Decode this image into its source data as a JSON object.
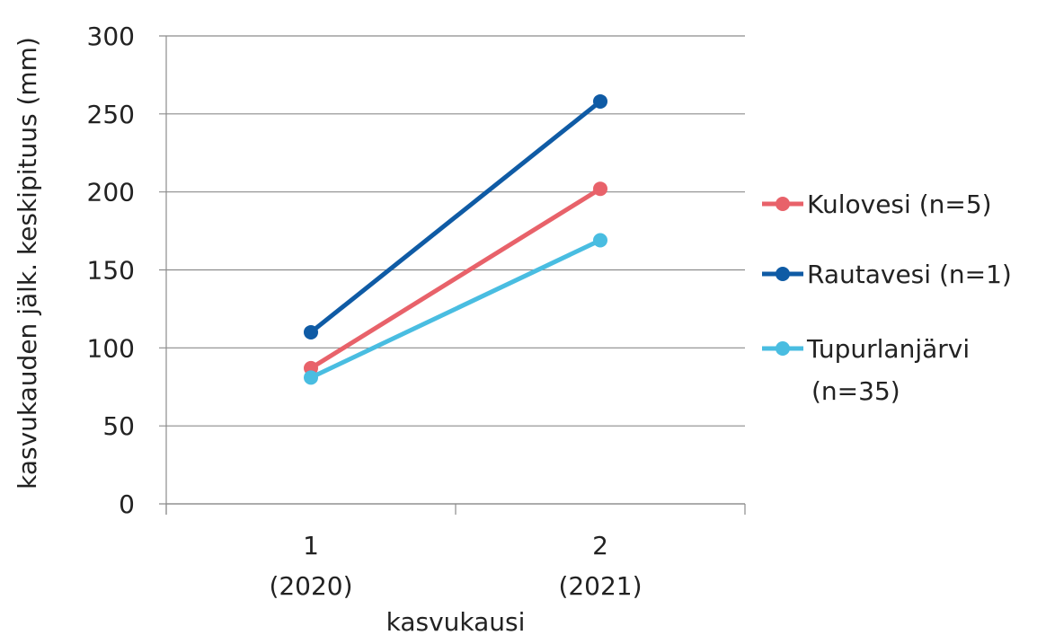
{
  "chart_data": {
    "type": "line",
    "xlabel": "kasvukausi",
    "ylabel": "kasvukauden jälk. keskipituus (mm)",
    "ylim": [
      0,
      300
    ],
    "yticks": [
      0,
      50,
      100,
      150,
      200,
      250,
      300
    ],
    "grid": true,
    "legend_position": "right",
    "categories": [
      {
        "line1": "1",
        "line2": "(2020)"
      },
      {
        "line1": "2",
        "line2": "(2021)"
      }
    ],
    "series": [
      {
        "name": "Kulovesi (n=5)",
        "name_lines": [
          "Kulovesi (n=5)"
        ],
        "color": "#E8626A",
        "values": [
          87,
          202
        ]
      },
      {
        "name": "Rautavesi (n=1)",
        "name_lines": [
          "Rautavesi (n=1)"
        ],
        "color": "#0F5BA5",
        "values": [
          110,
          258
        ]
      },
      {
        "name": "Tupurlanjärvi (n=35)",
        "name_lines": [
          "Tupurlanjärvi",
          "(n=35)"
        ],
        "color": "#49BDE1",
        "values": [
          81,
          169
        ]
      }
    ]
  }
}
